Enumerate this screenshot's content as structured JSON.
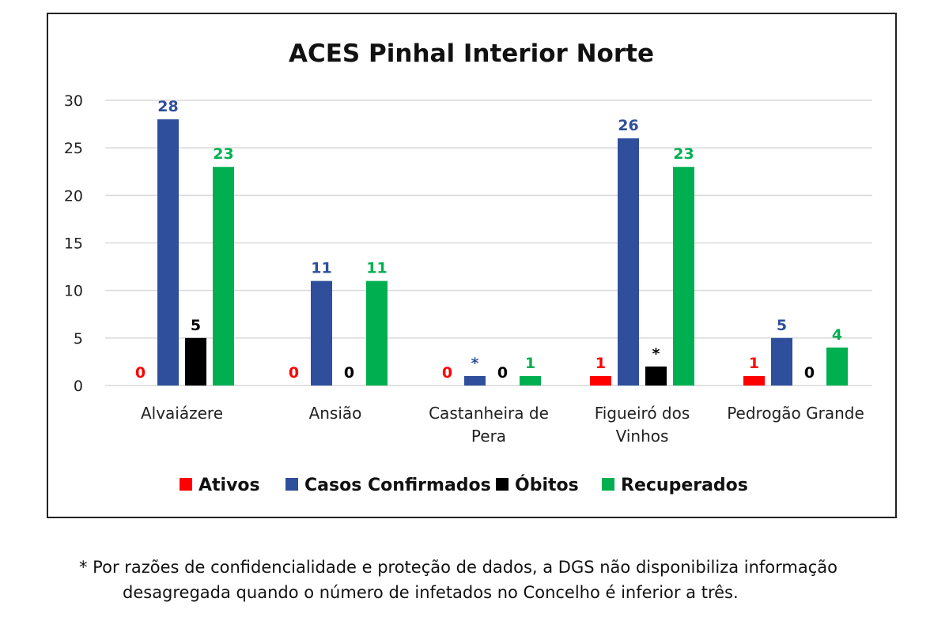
{
  "chart_data": {
    "type": "bar",
    "title": "ACES Pinhal Interior Norte",
    "categories": [
      [
        "Alvaiázere"
      ],
      [
        "Ansião"
      ],
      [
        "Castanheira de",
        "Pera"
      ],
      [
        "Figueiró dos",
        "Vinhos"
      ],
      [
        "Pedrogão Grande"
      ]
    ],
    "series": [
      {
        "name": "Ativos",
        "color": "#ff0000",
        "values": [
          0,
          0,
          0,
          1,
          1
        ],
        "labels": [
          "0",
          "0",
          "0",
          "1",
          "1"
        ]
      },
      {
        "name": "Casos Confirmados",
        "color": "#2f4f9c",
        "values": [
          28,
          11,
          1,
          26,
          5
        ],
        "labels": [
          "28",
          "11",
          "*",
          "26",
          "5"
        ]
      },
      {
        "name": "Óbitos",
        "color": "#000000",
        "values": [
          5,
          0,
          0,
          2,
          0
        ],
        "labels": [
          "5",
          "0",
          "0",
          "*",
          "0"
        ]
      },
      {
        "name": "Recuperados",
        "color": "#00b050",
        "values": [
          23,
          11,
          1,
          23,
          4
        ],
        "labels": [
          "23",
          "11",
          "1",
          "23",
          "4"
        ]
      }
    ],
    "ylim": [
      0,
      30
    ],
    "yticks": [
      0,
      5,
      10,
      15,
      20,
      25,
      30
    ],
    "grid": true,
    "legend": "bottom"
  },
  "footnote": {
    "line1": "* Por razões de confidencialidade e proteção de dados, a DGS não disponibiliza informação",
    "line2": "desagregada quando o número de infetados no Concelho é inferior a três."
  }
}
